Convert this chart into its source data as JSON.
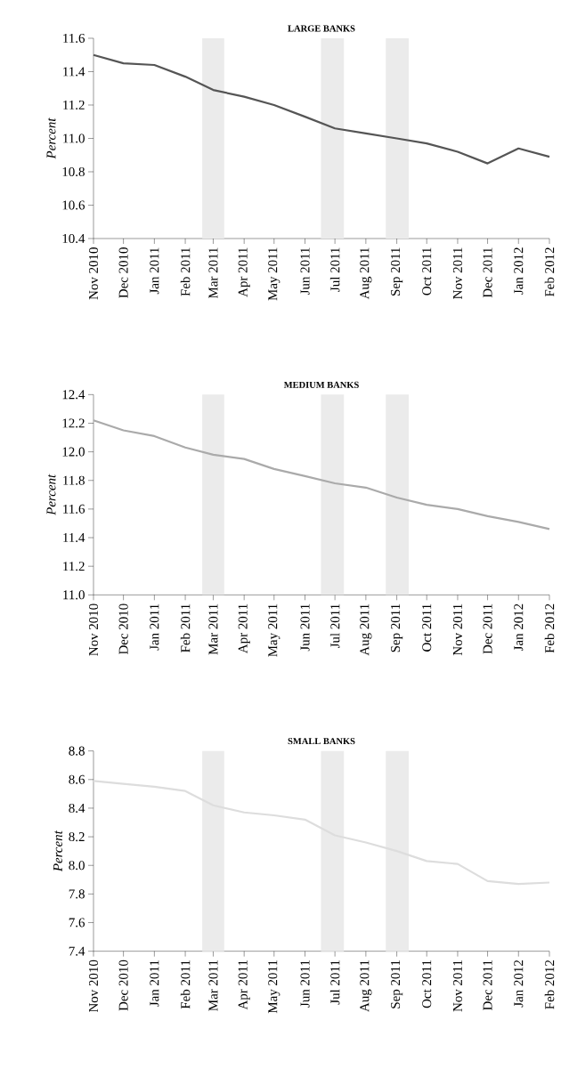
{
  "chart_data": [
    {
      "type": "line",
      "title": "LARGE BANKS",
      "ylabel": "Percent",
      "color": "#555555",
      "x": [
        "2010-11",
        "2010-12",
        "2011-01",
        "2011-02",
        "2011-03",
        "2011-04",
        "2011-05",
        "2011-06",
        "2011-07",
        "2011-08",
        "2011-09",
        "2011-10",
        "2011-11",
        "2011-12",
        "2012-01",
        "2012-02"
      ],
      "values": [
        11.5,
        11.45,
        11.44,
        11.37,
        11.29,
        11.25,
        11.2,
        11.13,
        11.06,
        11.03,
        11.0,
        10.97,
        10.92,
        10.85,
        10.94,
        10.89
      ],
      "xlim": [
        "2010-11",
        "2012-02"
      ],
      "xticks": [
        {
          "value": "2010-11",
          "label": "Nov 2010"
        },
        {
          "value": "2010-12",
          "label": "Dec 2010"
        },
        {
          "value": "2011-01",
          "label": "Jan 2011"
        },
        {
          "value": "2011-02",
          "label": "Feb 2011"
        },
        {
          "value": "2011-03",
          "label": "Mar 2011"
        },
        {
          "value": "2011-04",
          "label": "Apr 2011"
        },
        {
          "value": "2011-05",
          "label": "May 2011"
        },
        {
          "value": "2011-06",
          "label": "Jun 2011"
        },
        {
          "value": "2011-07",
          "label": "Jul 2011"
        },
        {
          "value": "2011-08",
          "label": "Aug 2011"
        },
        {
          "value": "2011-09",
          "label": "Sep 2011"
        },
        {
          "value": "2011-10",
          "label": "Oct 2011"
        },
        {
          "value": "2011-11",
          "label": "Nov 2011"
        },
        {
          "value": "2011-12",
          "label": "Dec 2011"
        },
        {
          "value": "2012-01",
          "label": "Jan 2012"
        },
        {
          "value": "2012-02",
          "label": "Feb 2012"
        }
      ],
      "ylim": [
        10.4,
        11.6
      ],
      "yticks": [
        10.4,
        10.6,
        10.8,
        {
          "value": 11,
          "label": "11.0"
        },
        11.2,
        11.4,
        11.6
      ],
      "bands": [
        {
          "axis": "x",
          "from": "2011-02-18",
          "to": "2011-03-12",
          "color": "#ebebeb"
        },
        {
          "axis": "x",
          "from": "2011-06-17",
          "to": "2011-07-10",
          "color": "#ebebeb"
        },
        {
          "axis": "x",
          "from": "2011-08-21",
          "to": "2011-09-13",
          "color": "#ebebeb"
        }
      ]
    },
    {
      "type": "line",
      "title": "MEDIUM BANKS",
      "ylabel": "Percent",
      "color": "#aaaaaa",
      "x": [
        "2010-11",
        "2010-12",
        "2011-01",
        "2011-02",
        "2011-03",
        "2011-04",
        "2011-05",
        "2011-06",
        "2011-07",
        "2011-08",
        "2011-09",
        "2011-10",
        "2011-11",
        "2011-12",
        "2012-01",
        "2012-02"
      ],
      "values": [
        12.22,
        12.15,
        12.11,
        12.03,
        11.98,
        11.95,
        11.88,
        11.83,
        11.78,
        11.75,
        11.68,
        11.63,
        11.6,
        11.55,
        11.51,
        11.46
      ],
      "xlim": [
        "2010-11",
        "2012-02"
      ],
      "xticks": [
        {
          "value": "2010-11",
          "label": "Nov 2010"
        },
        {
          "value": "2010-12",
          "label": "Dec 2010"
        },
        {
          "value": "2011-01",
          "label": "Jan 2011"
        },
        {
          "value": "2011-02",
          "label": "Feb 2011"
        },
        {
          "value": "2011-03",
          "label": "Mar 2011"
        },
        {
          "value": "2011-04",
          "label": "Apr 2011"
        },
        {
          "value": "2011-05",
          "label": "May 2011"
        },
        {
          "value": "2011-06",
          "label": "Jun 2011"
        },
        {
          "value": "2011-07",
          "label": "Jul 2011"
        },
        {
          "value": "2011-08",
          "label": "Aug 2011"
        },
        {
          "value": "2011-09",
          "label": "Sep 2011"
        },
        {
          "value": "2011-10",
          "label": "Oct 2011"
        },
        {
          "value": "2011-11",
          "label": "Nov 2011"
        },
        {
          "value": "2011-12",
          "label": "Dec 2011"
        },
        {
          "value": "2012-01",
          "label": "Jan 2012"
        },
        {
          "value": "2012-02",
          "label": "Feb 2012"
        }
      ],
      "ylim": [
        11.0,
        12.4
      ],
      "yticks": [
        {
          "value": 11,
          "label": "11.0"
        },
        11.2,
        11.4,
        11.6,
        11.8,
        {
          "value": 12,
          "label": "12.0"
        },
        12.2,
        12.4
      ],
      "bands": [
        {
          "axis": "x",
          "from": "2011-02-18",
          "to": "2011-03-12",
          "color": "#ebebeb"
        },
        {
          "axis": "x",
          "from": "2011-06-17",
          "to": "2011-07-10",
          "color": "#ebebeb"
        },
        {
          "axis": "x",
          "from": "2011-08-21",
          "to": "2011-09-13",
          "color": "#ebebeb"
        }
      ]
    },
    {
      "type": "line",
      "title": "SMALL BANKS",
      "ylabel": "Percent",
      "color": "#dddddd",
      "x": [
        "2010-11",
        "2010-12",
        "2011-01",
        "2011-02",
        "2011-03",
        "2011-04",
        "2011-05",
        "2011-06",
        "2011-07",
        "2011-08",
        "2011-09",
        "2011-10",
        "2011-11",
        "2011-12",
        "2012-01",
        "2012-02"
      ],
      "values": [
        8.59,
        8.57,
        8.55,
        8.52,
        8.42,
        8.37,
        8.35,
        8.32,
        8.21,
        8.16,
        8.1,
        8.03,
        8.01,
        7.89,
        7.87,
        7.88
      ],
      "xlim": [
        "2010-11",
        "2012-02"
      ],
      "xticks": [
        {
          "value": "2010-11",
          "label": "Nov 2010"
        },
        {
          "value": "2010-12",
          "label": "Dec 2010"
        },
        {
          "value": "2011-01",
          "label": "Jan 2011"
        },
        {
          "value": "2011-02",
          "label": "Feb 2011"
        },
        {
          "value": "2011-03",
          "label": "Mar 2011"
        },
        {
          "value": "2011-04",
          "label": "Apr 2011"
        },
        {
          "value": "2011-05",
          "label": "May 2011"
        },
        {
          "value": "2011-06",
          "label": "Jun 2011"
        },
        {
          "value": "2011-07",
          "label": "Jul 2011"
        },
        {
          "value": "2011-08",
          "label": "Aug 2011"
        },
        {
          "value": "2011-09",
          "label": "Sep 2011"
        },
        {
          "value": "2011-10",
          "label": "Oct 2011"
        },
        {
          "value": "2011-11",
          "label": "Nov 2011"
        },
        {
          "value": "2011-12",
          "label": "Dec 2011"
        },
        {
          "value": "2012-01",
          "label": "Jan 2012"
        },
        {
          "value": "2012-02",
          "label": "Feb 2012"
        }
      ],
      "ylim": [
        7.4,
        8.8
      ],
      "yticks": [
        7.4,
        7.6,
        7.8,
        {
          "value": 8,
          "label": "8.0"
        },
        8.2,
        8.4,
        8.6,
        8.8
      ],
      "bands": [
        {
          "axis": "x",
          "from": "2011-02-18",
          "to": "2011-03-12",
          "color": "#ebebeb"
        },
        {
          "axis": "x",
          "from": "2011-06-17",
          "to": "2011-07-10",
          "color": "#ebebeb"
        },
        {
          "axis": "x",
          "from": "2011-08-21",
          "to": "2011-09-13",
          "color": "#ebebeb"
        }
      ]
    }
  ]
}
